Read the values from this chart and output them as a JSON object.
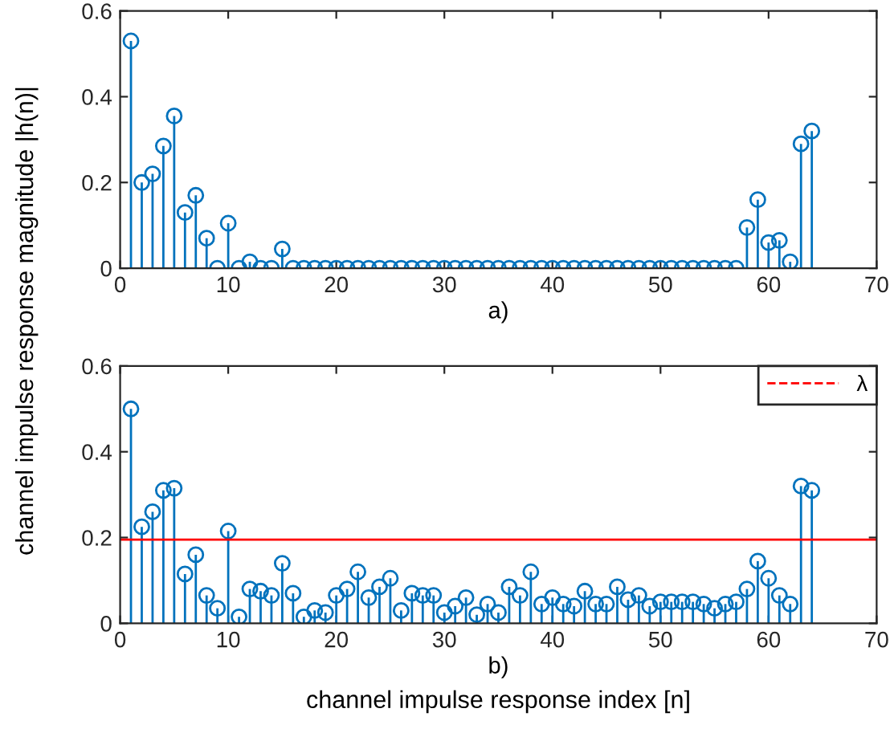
{
  "chart_data": [
    {
      "type": "lollipop",
      "xlabel": "a)",
      "ylabel": "channel impulse response magnitude |h(n)|",
      "marker": "circle",
      "grid": false,
      "legend": false,
      "x": [
        1,
        2,
        3,
        4,
        5,
        6,
        7,
        8,
        9,
        10,
        11,
        12,
        13,
        14,
        15,
        16,
        17,
        18,
        19,
        20,
        21,
        22,
        23,
        24,
        25,
        26,
        27,
        28,
        29,
        30,
        31,
        32,
        33,
        34,
        35,
        36,
        37,
        38,
        39,
        40,
        41,
        42,
        43,
        44,
        45,
        46,
        47,
        48,
        49,
        50,
        51,
        52,
        53,
        54,
        55,
        56,
        57,
        58,
        59,
        60,
        61,
        62,
        63,
        64
      ],
      "series": [
        {
          "color": "#0072bd",
          "values": [
            0.53,
            0.2,
            0.22,
            0.285,
            0.355,
            0.13,
            0.17,
            0.07,
            0,
            0.105,
            0,
            0.015,
            0,
            0,
            0.045,
            0,
            0,
            0,
            0,
            0,
            0,
            0,
            0,
            0,
            0,
            0,
            0,
            0,
            0,
            0,
            0,
            0,
            0,
            0,
            0,
            0,
            0,
            0,
            0,
            0,
            0,
            0,
            0,
            0,
            0,
            0,
            0,
            0,
            0,
            0,
            0,
            0,
            0,
            0,
            0,
            0,
            0,
            0.095,
            0.16,
            0.06,
            0.065,
            0.015,
            0.29,
            0.32
          ]
        }
      ],
      "xlim": [
        0,
        70
      ],
      "xticks": [
        0,
        10,
        20,
        30,
        40,
        50,
        60,
        70
      ],
      "ylim": [
        0,
        0.6
      ],
      "yticks": [
        0,
        0.2,
        0.4,
        0.6
      ]
    },
    {
      "type": "lollipop",
      "xlabel": "b)",
      "marker": "circle",
      "grid": false,
      "legend": "top right",
      "x": [
        1,
        2,
        3,
        4,
        5,
        6,
        7,
        8,
        9,
        10,
        11,
        12,
        13,
        14,
        15,
        16,
        17,
        18,
        19,
        20,
        21,
        22,
        23,
        24,
        25,
        26,
        27,
        28,
        29,
        30,
        31,
        32,
        33,
        34,
        35,
        36,
        37,
        38,
        39,
        40,
        41,
        42,
        43,
        44,
        45,
        46,
        47,
        48,
        49,
        50,
        51,
        52,
        53,
        54,
        55,
        56,
        57,
        58,
        59,
        60,
        61,
        62,
        63,
        64
      ],
      "series": [
        {
          "color": "#0072bd",
          "values": [
            0.5,
            0.225,
            0.26,
            0.31,
            0.315,
            0.115,
            0.16,
            0.065,
            0.035,
            0.215,
            0.015,
            0.08,
            0.075,
            0.065,
            0.14,
            0.07,
            0.015,
            0.03,
            0.025,
            0.065,
            0.08,
            0.12,
            0.06,
            0.085,
            0.105,
            0.03,
            0.07,
            0.065,
            0.065,
            0.025,
            0.04,
            0.06,
            0.02,
            0.045,
            0.025,
            0.085,
            0.065,
            0.12,
            0.045,
            0.06,
            0.045,
            0.04,
            0.075,
            0.045,
            0.045,
            0.085,
            0.055,
            0.065,
            0.04,
            0.05,
            0.05,
            0.05,
            0.05,
            0.045,
            0.035,
            0.045,
            0.05,
            0.08,
            0.145,
            0.105,
            0.065,
            0.045,
            0.32,
            0.31
          ]
        }
      ],
      "ref_lines": [
        {
          "axis": "y",
          "value": 0.195,
          "label": "λ",
          "color": "#ff0000",
          "line_style": "solid"
        }
      ],
      "annotations": [
        "channel impulse response index [n]"
      ],
      "xlim": [
        0,
        70
      ],
      "xticks": [
        0,
        10,
        20,
        30,
        40,
        50,
        60,
        70
      ],
      "ylim": [
        0,
        0.6
      ],
      "yticks": [
        0,
        0.2,
        0.4,
        0.6
      ]
    }
  ]
}
